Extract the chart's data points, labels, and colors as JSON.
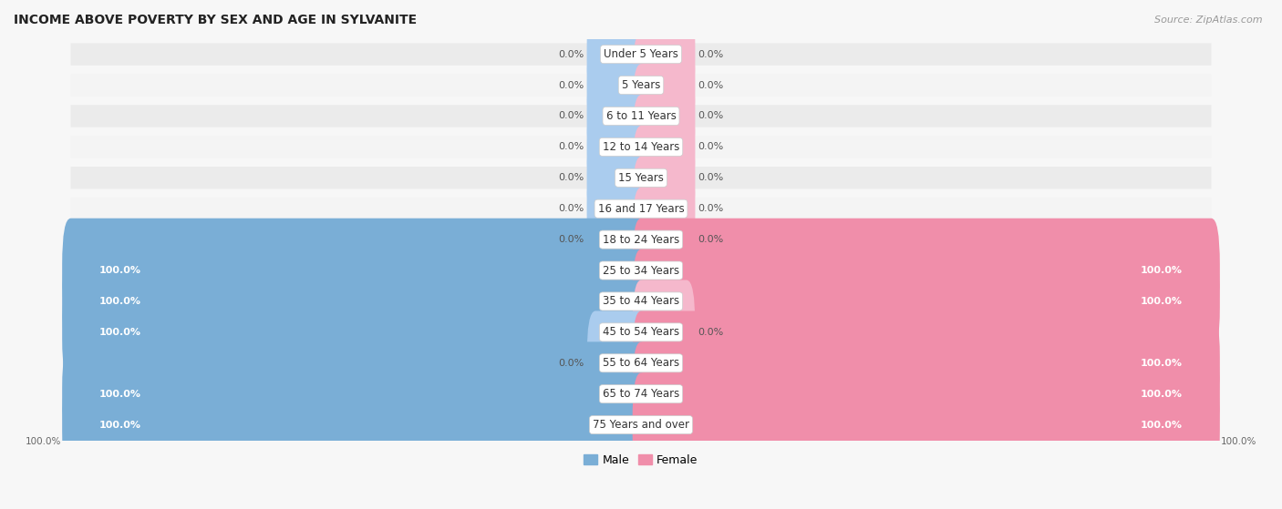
{
  "title": "INCOME ABOVE POVERTY BY SEX AND AGE IN SYLVANITE",
  "source": "Source: ZipAtlas.com",
  "categories": [
    "Under 5 Years",
    "5 Years",
    "6 to 11 Years",
    "12 to 14 Years",
    "15 Years",
    "16 and 17 Years",
    "18 to 24 Years",
    "25 to 34 Years",
    "35 to 44 Years",
    "45 to 54 Years",
    "55 to 64 Years",
    "65 to 74 Years",
    "75 Years and over"
  ],
  "male_values": [
    0.0,
    0.0,
    0.0,
    0.0,
    0.0,
    0.0,
    0.0,
    100.0,
    100.0,
    100.0,
    0.0,
    100.0,
    100.0
  ],
  "female_values": [
    0.0,
    0.0,
    0.0,
    0.0,
    0.0,
    0.0,
    0.0,
    100.0,
    100.0,
    0.0,
    100.0,
    100.0,
    100.0
  ],
  "male_color": "#7aaed6",
  "female_color": "#f08eaa",
  "male_color_light": "#aaccee",
  "female_color_light": "#f5b8cc",
  "male_label": "Male",
  "female_label": "Female",
  "bg_strip_color": "#e8e8e8",
  "bg_main": "#f7f7f7",
  "title_fontsize": 10,
  "value_fontsize": 8,
  "cat_fontsize": 8.5,
  "source_fontsize": 8
}
